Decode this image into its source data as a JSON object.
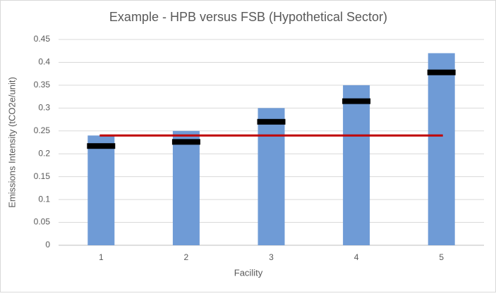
{
  "chart_data": {
    "type": "bar",
    "title": "Example - HPB versus FSB (Hypothetical Sector)",
    "x_label": "Facility",
    "y_label": "Emissions Intensity (tCO2e/unit)",
    "categories": [
      "1",
      "2",
      "3",
      "4",
      "5"
    ],
    "series": [
      {
        "kind": "bar",
        "color": "#6f9bd6",
        "values": [
          0.24,
          0.25,
          0.3,
          0.35,
          0.42
        ]
      },
      {
        "kind": "marker",
        "color": "#000000",
        "values": [
          0.217,
          0.226,
          0.27,
          0.315,
          0.378
        ]
      },
      {
        "kind": "line",
        "color": "#c00000",
        "values": [
          0.24,
          0.24,
          0.24,
          0.24,
          0.24
        ]
      }
    ],
    "ylim": [
      0,
      0.45
    ],
    "yticks": [
      0,
      0.05,
      0.1,
      0.15,
      0.2,
      0.25,
      0.3,
      0.35,
      0.4,
      0.45
    ],
    "grid": true
  }
}
